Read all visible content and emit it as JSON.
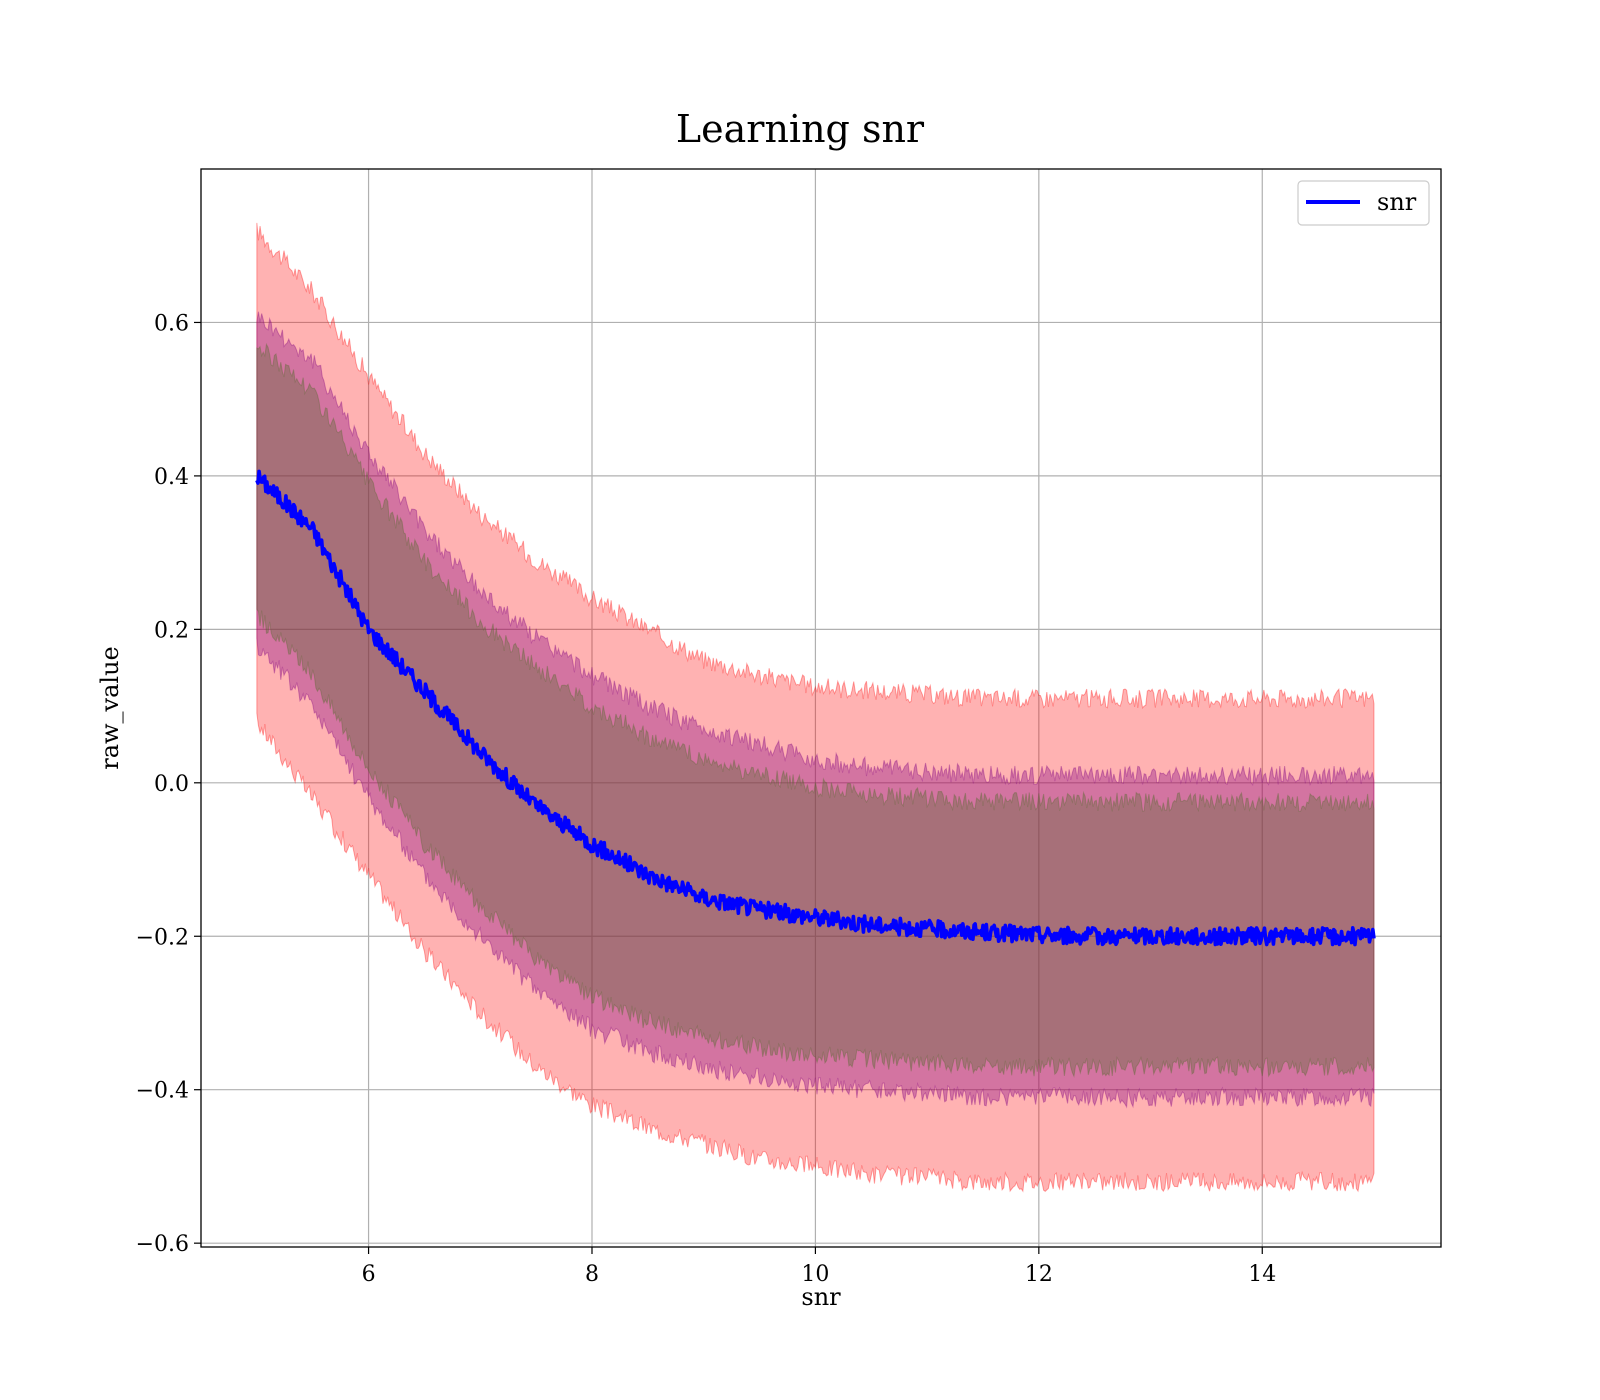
{
  "chart_data": {
    "type": "line",
    "title": "Learning snr",
    "xlabel": "snr",
    "ylabel": "raw_value",
    "xlim": [
      4.5,
      15.6
    ],
    "ylim": [
      -0.605,
      0.8
    ],
    "xticks": [
      6,
      8,
      10,
      12,
      14
    ],
    "xtick_labels": [
      "6",
      "8",
      "10",
      "12",
      "14"
    ],
    "yticks": [
      -0.6,
      -0.4,
      -0.2,
      0.0,
      0.2,
      0.4,
      0.6
    ],
    "ytick_labels": [
      "−0.6",
      "−0.4",
      "−0.2",
      "0.0",
      "0.2",
      "0.4",
      "0.6"
    ],
    "grid": true,
    "legend": {
      "placement": "top-right",
      "entries": [
        "snr"
      ]
    },
    "series": [
      {
        "name": "snr",
        "color": "#0000ff",
        "x": [
          5.0,
          5.5,
          6.0,
          6.5,
          7.0,
          7.5,
          8.0,
          8.5,
          9.0,
          9.5,
          10.0,
          10.5,
          11.0,
          11.5,
          12.0,
          12.5,
          13.0,
          13.5,
          14.0,
          14.5,
          15.0
        ],
        "y": [
          0.4,
          0.33,
          0.2,
          0.12,
          0.04,
          -0.03,
          -0.08,
          -0.12,
          -0.15,
          -0.165,
          -0.175,
          -0.185,
          -0.19,
          -0.195,
          -0.198,
          -0.2,
          -0.2,
          -0.2,
          -0.2,
          -0.2,
          -0.2
        ]
      }
    ],
    "bands": [
      {
        "color": "#ff0000",
        "opacity": 0.3,
        "x": [
          5.0,
          5.5,
          6.0,
          6.5,
          7.0,
          7.5,
          8.0,
          8.5,
          9.0,
          9.5,
          10.0,
          10.5,
          11.0,
          11.5,
          12.0,
          12.5,
          13.0,
          13.5,
          14.0,
          14.5,
          15.0
        ],
        "lower": [
          0.08,
          -0.02,
          -0.12,
          -0.22,
          -0.3,
          -0.37,
          -0.42,
          -0.45,
          -0.47,
          -0.49,
          -0.5,
          -0.51,
          -0.515,
          -0.52,
          -0.52,
          -0.52,
          -0.52,
          -0.52,
          -0.52,
          -0.52,
          -0.52
        ],
        "upper": [
          0.72,
          0.64,
          0.53,
          0.43,
          0.35,
          0.29,
          0.24,
          0.2,
          0.16,
          0.14,
          0.125,
          0.12,
          0.115,
          0.11,
          0.11,
          0.11,
          0.11,
          0.11,
          0.11,
          0.11,
          0.11
        ]
      },
      {
        "color": "#800080",
        "opacity": 0.35,
        "x": [
          5.0,
          5.5,
          6.0,
          6.5,
          7.0,
          7.5,
          8.0,
          8.5,
          9.0,
          9.5,
          10.0,
          10.5,
          11.0,
          11.5,
          12.0,
          12.5,
          13.0,
          13.5,
          14.0,
          14.5,
          15.0
        ],
        "lower": [
          0.18,
          0.1,
          -0.02,
          -0.12,
          -0.2,
          -0.27,
          -0.32,
          -0.35,
          -0.37,
          -0.385,
          -0.395,
          -0.4,
          -0.405,
          -0.41,
          -0.41,
          -0.41,
          -0.41,
          -0.41,
          -0.41,
          -0.41,
          -0.41
        ],
        "upper": [
          0.61,
          0.55,
          0.43,
          0.33,
          0.25,
          0.19,
          0.14,
          0.1,
          0.07,
          0.05,
          0.03,
          0.02,
          0.015,
          0.01,
          0.01,
          0.01,
          0.01,
          0.01,
          0.01,
          0.01,
          0.01
        ]
      },
      {
        "color": "#556b2f",
        "opacity": 0.35,
        "x": [
          5.0,
          5.5,
          6.0,
          6.5,
          7.0,
          7.5,
          8.0,
          8.5,
          9.0,
          9.5,
          10.0,
          10.5,
          11.0,
          11.5,
          12.0,
          12.5,
          13.0,
          13.5,
          14.0,
          14.5,
          15.0
        ],
        "lower": [
          0.22,
          0.14,
          0.02,
          -0.08,
          -0.16,
          -0.23,
          -0.28,
          -0.31,
          -0.33,
          -0.345,
          -0.355,
          -0.36,
          -0.365,
          -0.37,
          -0.37,
          -0.37,
          -0.37,
          -0.37,
          -0.37,
          -0.37,
          -0.37
        ],
        "upper": [
          0.57,
          0.51,
          0.39,
          0.29,
          0.21,
          0.15,
          0.1,
          0.06,
          0.03,
          0.01,
          -0.005,
          -0.015,
          -0.02,
          -0.025,
          -0.025,
          -0.025,
          -0.025,
          -0.025,
          -0.025,
          -0.025,
          -0.025
        ]
      }
    ]
  }
}
